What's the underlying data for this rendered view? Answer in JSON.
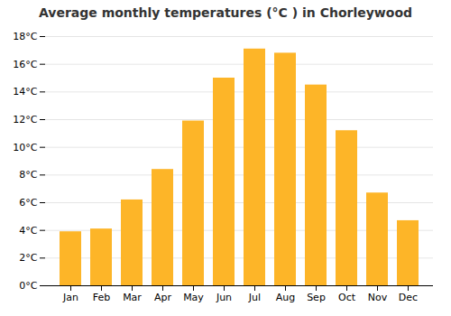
{
  "chart_data": {
    "type": "bar",
    "title": "Average monthly temperatures (°C ) in Chorleywood",
    "categories": [
      "Jan",
      "Feb",
      "Mar",
      "Apr",
      "May",
      "Jun",
      "Jul",
      "Aug",
      "Sep",
      "Oct",
      "Nov",
      "Dec"
    ],
    "values": [
      3.9,
      4.1,
      6.2,
      8.4,
      11.9,
      15.0,
      17.1,
      16.8,
      14.5,
      11.2,
      6.7,
      4.7
    ],
    "color": "#FDB528",
    "ylim": [
      0,
      18
    ],
    "yticks": [
      {
        "value": 0,
        "label": "0°C"
      },
      {
        "value": 2,
        "label": "2°C"
      },
      {
        "value": 4,
        "label": "4°C"
      },
      {
        "value": 6,
        "label": "6°C"
      },
      {
        "value": 8,
        "label": "8°C"
      },
      {
        "value": 10,
        "label": "10°C"
      },
      {
        "value": 12,
        "label": "12°C"
      },
      {
        "value": 14,
        "label": "14°C"
      },
      {
        "value": 16,
        "label": "16°C"
      },
      {
        "value": 18,
        "label": "18°C"
      }
    ],
    "grid": true
  }
}
